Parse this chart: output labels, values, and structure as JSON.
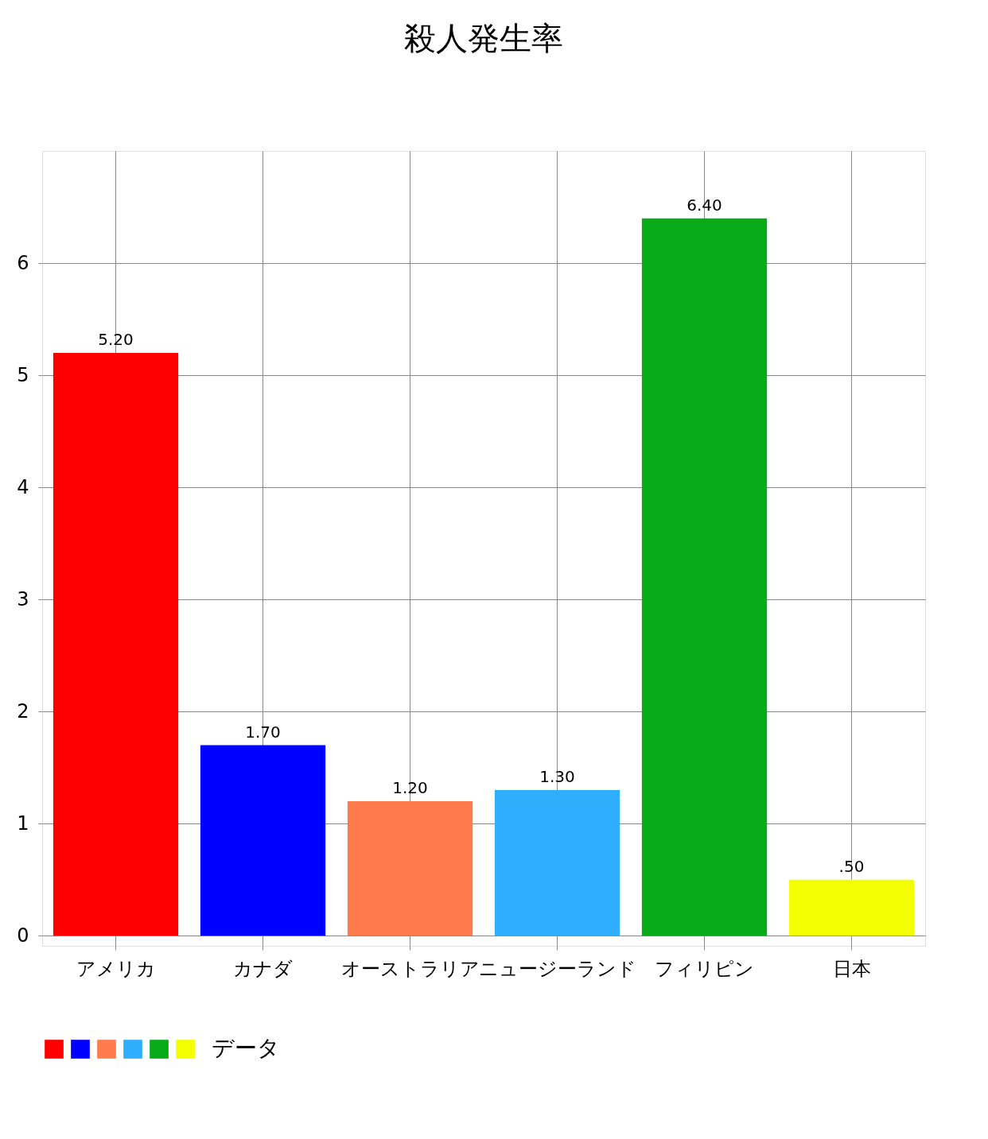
{
  "chart_data": {
    "type": "bar",
    "title": "殺人発生率",
    "categories": [
      "アメリカ",
      "カナダ",
      "オーストラリア",
      "ニュージーランド",
      "フィリピン",
      "日本"
    ],
    "series": [
      {
        "name": "データ",
        "colors": [
          "#ff0000",
          "#0000ff",
          "#ff7b4c",
          "#2eaefc",
          "#07aa17",
          "#f3ff00"
        ],
        "values": [
          5.2,
          1.7,
          1.2,
          1.3,
          6.4,
          0.5
        ],
        "value_labels": [
          "5.20",
          "1.70",
          "1.20",
          "1.30",
          "6.40",
          ".50"
        ]
      }
    ],
    "ylim": [
      -0.09,
      7
    ],
    "yticks": [
      0,
      1,
      2,
      3,
      4,
      5,
      6
    ],
    "grid": true,
    "legend": "bottom left"
  }
}
